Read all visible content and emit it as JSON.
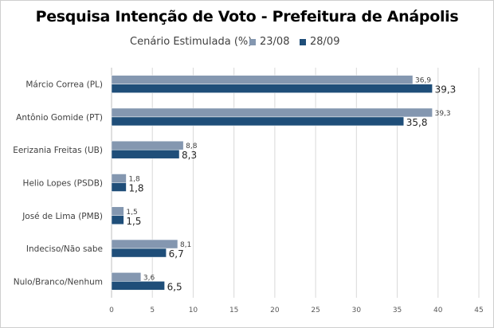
{
  "chart_data": {
    "type": "bar",
    "orientation": "horizontal",
    "title": "Pesquisa Intenção de Voto - Prefeitura de Anápolis",
    "subtitle": "Cenário Estimulada (%)",
    "categories": [
      "Márcio Correa (PL)",
      "Antônio Gomide (PT)",
      "Eerizania Freitas (UB)",
      "Helio Lopes (PSDB)",
      "José de Lima (PMB)",
      "Indeciso/Não sabe",
      "Nulo/Branco/Nenhum"
    ],
    "series": [
      {
        "name": "23/08",
        "color": "#8497B0",
        "values": [
          36.9,
          39.3,
          8.8,
          1.8,
          1.5,
          8.1,
          3.6
        ],
        "labels": [
          "36,9",
          "39,3",
          "8,8",
          "1,8",
          "1,5",
          "8,1",
          "3,6"
        ]
      },
      {
        "name": "28/09",
        "color": "#1F4E79",
        "values": [
          39.3,
          35.8,
          8.3,
          1.8,
          1.5,
          6.7,
          6.5
        ],
        "labels": [
          "39,3",
          "35,8",
          "8,3",
          "1,8",
          "1,5",
          "6,7",
          "6,5"
        ]
      }
    ],
    "xlim": [
      0,
      45
    ],
    "xticks": [
      0,
      5,
      10,
      15,
      20,
      25,
      30,
      35,
      40,
      45
    ],
    "grid": true,
    "legend_position": "top"
  }
}
